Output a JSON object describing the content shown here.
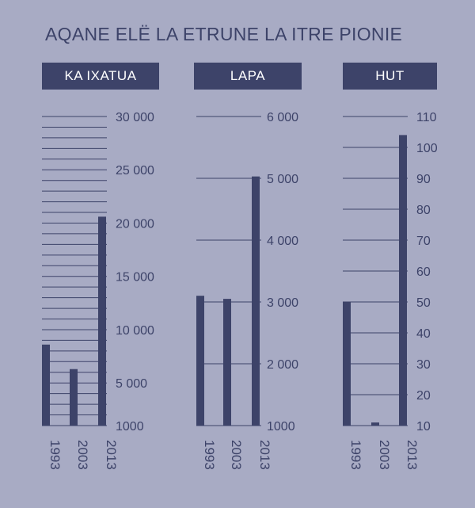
{
  "title": "AQANE ELË LA ETRUNE LA ITRE PIONIE",
  "colors": {
    "background": "#a8abc4",
    "bar": "#3d4369",
    "grid": "#3d4369",
    "header_bg": "#3d4369",
    "header_text": "#ffffff"
  },
  "chart_data": [
    {
      "type": "bar",
      "title": "KA IXATUA",
      "categories": [
        "1993",
        "2003",
        "2013"
      ],
      "values": [
        8600,
        6300,
        20600
      ],
      "ylim": [
        1000,
        30000
      ],
      "y_ticks": [
        1000,
        5000,
        10000,
        15000,
        20000,
        25000,
        30000
      ],
      "y_tick_labels": [
        "1000",
        "5 000",
        "10 000",
        "15 000",
        "20 000",
        "25 000",
        "30 000"
      ],
      "grid_step": 1000,
      "grid": true,
      "xlabel": "",
      "ylabel": ""
    },
    {
      "type": "bar",
      "title": "LAPA",
      "categories": [
        "1993",
        "2003",
        "2013"
      ],
      "values": [
        3100,
        3050,
        5030
      ],
      "ylim": [
        1000,
        6000
      ],
      "y_ticks": [
        1000,
        2000,
        3000,
        4000,
        5000,
        6000
      ],
      "y_tick_labels": [
        "1000",
        "2 000",
        "3 000",
        "4 000",
        "5 000",
        "6 000"
      ],
      "grid_step": 1000,
      "grid": true,
      "xlabel": "",
      "ylabel": ""
    },
    {
      "type": "bar",
      "title": "HUT",
      "categories": [
        "1993",
        "2003",
        "2013"
      ],
      "values": [
        50,
        11,
        104
      ],
      "ylim": [
        10,
        110
      ],
      "y_ticks": [
        10,
        20,
        30,
        40,
        50,
        60,
        70,
        80,
        90,
        100,
        110
      ],
      "y_tick_labels": [
        "10",
        "20",
        "30",
        "40",
        "50",
        "60",
        "70",
        "80",
        "90",
        "100",
        "110"
      ],
      "grid_step": 10,
      "grid": true,
      "xlabel": "",
      "ylabel": ""
    }
  ]
}
